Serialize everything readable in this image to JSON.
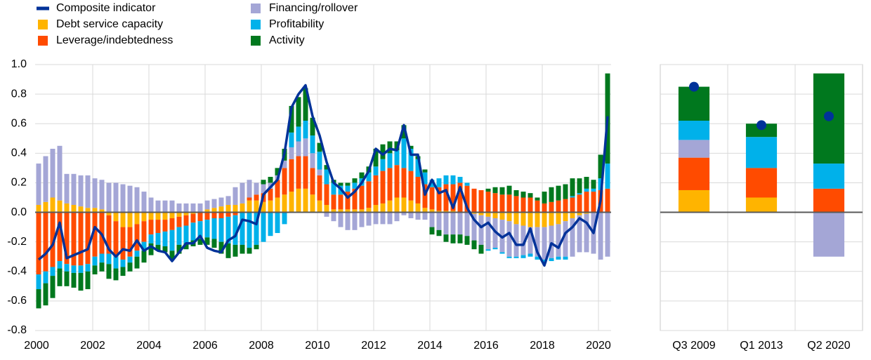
{
  "chart_data": [
    {
      "type": "bar",
      "stacked": true,
      "legend": "top-left",
      "grid": true,
      "categories": [
        "2000",
        null,
        null,
        null,
        null,
        null,
        null,
        null,
        "2002",
        null,
        null,
        null,
        null,
        null,
        null,
        null,
        "2004",
        null,
        null,
        null,
        null,
        null,
        null,
        null,
        "2006",
        null,
        null,
        null,
        null,
        null,
        null,
        null,
        "2008",
        null,
        null,
        null,
        null,
        null,
        null,
        null,
        "2010",
        null,
        null,
        null,
        null,
        null,
        null,
        null,
        "2012",
        null,
        null,
        null,
        null,
        null,
        null,
        null,
        "2014",
        null,
        null,
        null,
        null,
        null,
        null,
        null,
        "2016",
        null,
        null,
        null,
        null,
        null,
        null,
        null,
        "2018",
        null,
        null,
        null,
        null,
        null,
        null,
        null,
        "2020",
        null
      ],
      "series": [
        {
          "name": "Debt service capacity",
          "color": "#ffb400",
          "values": [
            0.05,
            0.07,
            0.1,
            0.08,
            0.06,
            0.05,
            0.04,
            0.03,
            0.03,
            0.02,
            -0.02,
            -0.06,
            -0.1,
            -0.1,
            -0.08,
            -0.06,
            -0.05,
            -0.05,
            -0.05,
            -0.04,
            -0.03,
            -0.02,
            -0.01,
            0.0,
            0.02,
            0.03,
            0.04,
            0.05,
            0.05,
            0.06,
            0.08,
            0.08,
            0.07,
            0.08,
            0.1,
            0.12,
            0.14,
            0.16,
            0.16,
            0.12,
            0.08,
            0.05,
            0.02,
            0.02,
            0.02,
            0.02,
            0.02,
            0.03,
            0.05,
            0.06,
            0.08,
            0.1,
            0.1,
            0.08,
            0.06,
            0.03,
            0.02,
            0.01,
            0.01,
            0.01,
            0.0,
            0.0,
            -0.01,
            -0.02,
            -0.03,
            -0.04,
            -0.05,
            -0.06,
            -0.08,
            -0.09,
            -0.1,
            -0.1,
            -0.1,
            -0.09,
            -0.08,
            -0.06,
            -0.04,
            -0.02,
            -0.01,
            0.0,
            0.0,
            0.0
          ]
        },
        {
          "name": "Leverage/indebtedness",
          "color": "#ff4b00",
          "values": [
            -0.42,
            -0.4,
            -0.37,
            -0.33,
            -0.35,
            -0.36,
            -0.36,
            -0.35,
            -0.3,
            -0.28,
            -0.26,
            -0.24,
            -0.22,
            -0.2,
            -0.18,
            -0.14,
            -0.1,
            -0.09,
            -0.08,
            -0.08,
            -0.07,
            -0.07,
            -0.06,
            -0.06,
            -0.05,
            -0.04,
            -0.04,
            -0.03,
            -0.02,
            0.0,
            0.02,
            0.04,
            0.06,
            0.08,
            0.12,
            0.18,
            0.22,
            0.22,
            0.22,
            0.18,
            0.17,
            0.14,
            0.1,
            0.1,
            0.12,
            0.14,
            0.16,
            0.18,
            0.2,
            0.22,
            0.22,
            0.22,
            0.2,
            0.2,
            0.18,
            0.16,
            0.15,
            0.16,
            0.18,
            0.18,
            0.2,
            0.18,
            0.16,
            0.15,
            0.14,
            0.13,
            0.12,
            0.12,
            0.11,
            0.1,
            0.1,
            0.08,
            0.06,
            0.07,
            0.08,
            0.09,
            0.1,
            0.12,
            0.14,
            0.14,
            0.15,
            0.16
          ]
        },
        {
          "name": "Financing/rollover",
          "color": "#a4a6d6",
          "values": [
            0.28,
            0.31,
            0.33,
            0.37,
            0.2,
            0.21,
            0.21,
            0.22,
            0.2,
            0.2,
            0.2,
            0.2,
            0.19,
            0.18,
            0.17,
            0.14,
            0.1,
            0.08,
            0.08,
            0.08,
            0.06,
            0.06,
            0.06,
            0.06,
            0.06,
            0.06,
            0.06,
            0.06,
            0.12,
            0.14,
            0.12,
            0.08,
            0.06,
            0.04,
            0.03,
            0.05,
            0.08,
            0.1,
            0.12,
            0.1,
            0.04,
            -0.03,
            -0.06,
            -0.1,
            -0.12,
            -0.12,
            -0.1,
            -0.09,
            -0.08,
            -0.08,
            -0.08,
            -0.06,
            -0.02,
            -0.04,
            -0.05,
            -0.05,
            -0.1,
            -0.12,
            -0.15,
            -0.15,
            -0.15,
            -0.16,
            -0.18,
            -0.2,
            -0.22,
            -0.2,
            -0.22,
            -0.24,
            -0.22,
            -0.2,
            -0.18,
            -0.2,
            -0.22,
            -0.22,
            -0.22,
            -0.24,
            -0.26,
            -0.25,
            -0.26,
            -0.28,
            -0.32,
            -0.3
          ]
        },
        {
          "name": "Profitability",
          "color": "#00b1ea",
          "values": [
            -0.1,
            -0.08,
            -0.06,
            -0.05,
            -0.05,
            -0.05,
            -0.05,
            -0.05,
            -0.06,
            -0.06,
            -0.07,
            -0.08,
            -0.05,
            -0.04,
            -0.04,
            -0.06,
            -0.06,
            -0.08,
            -0.1,
            -0.14,
            -0.12,
            -0.12,
            -0.12,
            -0.12,
            -0.12,
            -0.14,
            -0.16,
            -0.18,
            -0.2,
            -0.22,
            -0.24,
            -0.22,
            -0.2,
            -0.16,
            -0.14,
            -0.08,
            0.1,
            0.1,
            0.12,
            0.12,
            0.12,
            0.1,
            0.08,
            0.06,
            0.04,
            0.04,
            0.05,
            0.06,
            0.06,
            0.08,
            0.1,
            0.1,
            0.2,
            0.15,
            0.12,
            0.08,
            0.05,
            0.06,
            0.06,
            0.06,
            0.04,
            0.02,
            0.0,
            0.0,
            -0.01,
            -0.01,
            -0.01,
            -0.01,
            -0.01,
            -0.02,
            -0.02,
            -0.02,
            -0.02,
            -0.02,
            -0.02,
            -0.02,
            0.01,
            0.01,
            0.02,
            0.02,
            0.08,
            0.17
          ]
        },
        {
          "name": "Activity",
          "color": "#00781e",
          "values": [
            -0.13,
            -0.15,
            -0.15,
            -0.12,
            -0.1,
            -0.1,
            -0.12,
            -0.12,
            -0.06,
            -0.06,
            -0.1,
            -0.08,
            -0.06,
            -0.06,
            -0.08,
            -0.08,
            -0.08,
            -0.04,
            -0.04,
            -0.06,
            -0.06,
            -0.04,
            -0.04,
            -0.04,
            -0.05,
            -0.06,
            -0.08,
            -0.1,
            -0.08,
            -0.06,
            -0.04,
            -0.03,
            0.03,
            0.04,
            0.05,
            0.08,
            0.18,
            0.2,
            0.22,
            0.12,
            0.06,
            0.03,
            0.02,
            0.02,
            0.02,
            0.03,
            0.04,
            0.04,
            0.12,
            0.1,
            0.08,
            0.06,
            0.09,
            0.02,
            0.02,
            0.02,
            -0.05,
            -0.04,
            -0.05,
            -0.06,
            -0.06,
            -0.06,
            -0.06,
            -0.06,
            0.02,
            0.04,
            0.05,
            0.06,
            0.04,
            0.04,
            0.03,
            0.02,
            0.08,
            0.1,
            0.1,
            0.1,
            0.12,
            0.1,
            0.08,
            0.06,
            0.16,
            0.61
          ]
        },
        {
          "name": "Composite indicator",
          "color": "#003299",
          "type": "line",
          "values": [
            -0.32,
            -0.28,
            -0.22,
            -0.07,
            -0.31,
            -0.29,
            -0.27,
            -0.25,
            -0.1,
            -0.15,
            -0.25,
            -0.3,
            -0.25,
            -0.26,
            -0.19,
            -0.26,
            -0.23,
            -0.26,
            -0.27,
            -0.33,
            -0.27,
            -0.21,
            -0.21,
            -0.16,
            -0.24,
            -0.26,
            -0.27,
            -0.19,
            -0.16,
            -0.05,
            -0.06,
            -0.08,
            0.12,
            0.17,
            0.22,
            0.4,
            0.71,
            0.8,
            0.86,
            0.65,
            0.52,
            0.34,
            0.2,
            0.16,
            0.1,
            0.14,
            0.2,
            0.28,
            0.43,
            0.39,
            0.43,
            0.42,
            0.59,
            0.39,
            0.39,
            0.12,
            0.22,
            0.13,
            0.15,
            0.03,
            0.17,
            0.03,
            -0.05,
            -0.1,
            -0.07,
            -0.13,
            -0.17,
            -0.14,
            -0.22,
            -0.22,
            -0.11,
            -0.27,
            -0.36,
            -0.21,
            -0.24,
            -0.14,
            -0.1,
            -0.04,
            -0.07,
            -0.14,
            0.08,
            0.65
          ]
        }
      ],
      "ylim": [
        -0.8,
        1.0
      ],
      "yticks": [
        -0.8,
        -0.6,
        -0.4,
        -0.2,
        {
          "value": 0,
          "label": "0.0"
        },
        0.2,
        0.4,
        0.6,
        0.8,
        {
          "value": 1,
          "label": "1.0"
        }
      ]
    },
    {
      "type": "bar",
      "stacked": true,
      "grid": true,
      "categories": [
        "Q3 2009",
        "Q1 2013",
        "Q2 2020"
      ],
      "series": [
        {
          "color": "#ffb400",
          "values": [
            0.15,
            0.1,
            0.0
          ]
        },
        {
          "color": "#ff4b00",
          "values": [
            0.22,
            0.2,
            0.16
          ]
        },
        {
          "color": "#a4a6d6",
          "values": [
            0.12,
            0.0,
            -0.3
          ]
        },
        {
          "color": "#00b1ea",
          "values": [
            0.13,
            0.21,
            0.17
          ]
        },
        {
          "color": "#00781e",
          "values": [
            0.23,
            0.09,
            0.61
          ]
        },
        {
          "color": "#003299",
          "type": "scatter",
          "values": [
            0.85,
            0.59,
            0.65
          ]
        }
      ],
      "ylim": [
        -0.8,
        1.0
      ],
      "yticks": [
        -0.8,
        -0.6,
        -0.4,
        -0.2,
        0,
        0.2,
        0.4,
        0.6,
        0.8,
        1.0
      ]
    }
  ]
}
